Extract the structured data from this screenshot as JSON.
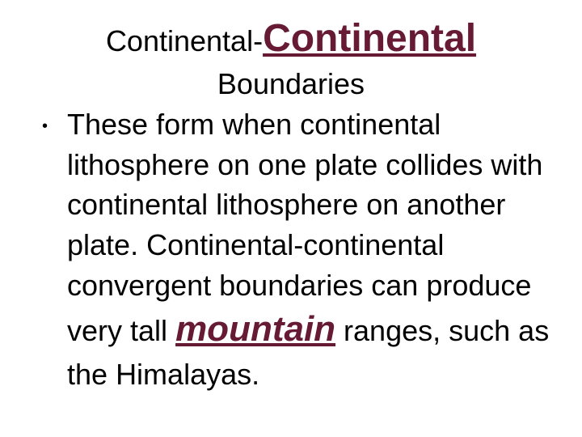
{
  "title": {
    "part1": "Continental-",
    "part2": "Continental",
    "subtitle": "Boundaries",
    "part1_fontsize": 36,
    "part2_fontsize": 48,
    "part2_color": "#661a33",
    "subtitle_fontsize": 36
  },
  "body": {
    "bullet_char": "•",
    "text_before": "These form when continental lithosphere on one plate collides with continental lithosphere on another plate. Continental-continental convergent boundaries  can produce very tall ",
    "emphasis": "mountain",
    "text_after": " ranges, such as the Himalayas.",
    "fontsize": 36,
    "emphasis_fontsize": 44,
    "emphasis_color": "#661a33"
  },
  "colors": {
    "background": "#ffffff",
    "text": "#000000",
    "accent": "#661a33"
  }
}
